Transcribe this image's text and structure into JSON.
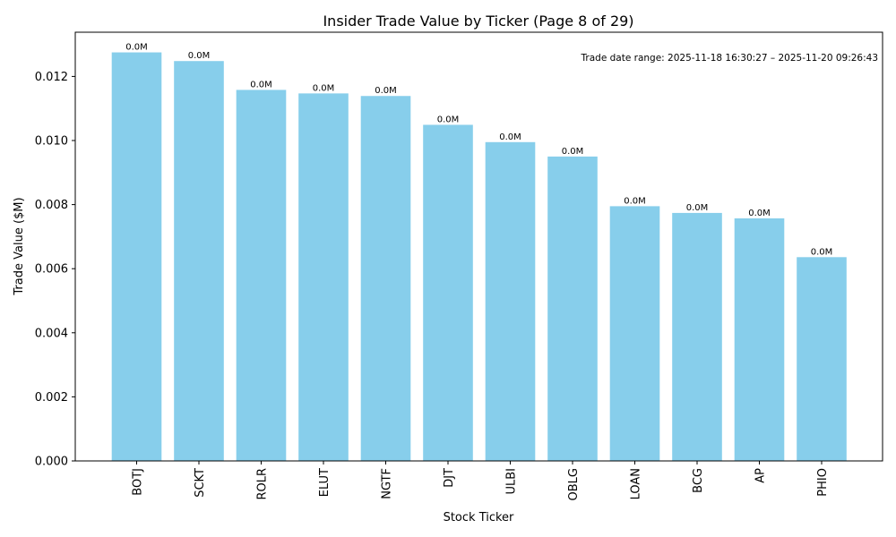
{
  "chart_data": {
    "type": "bar",
    "title": "Insider Trade Value by Ticker (Page 8 of 29)",
    "xlabel": "Stock Ticker",
    "ylabel": "Trade Value ($M)",
    "categories": [
      "BOTJ",
      "SCKT",
      "ROLR",
      "ELUT",
      "NGTF",
      "DJT",
      "ULBI",
      "OBLG",
      "LOAN",
      "BCG",
      "AP",
      "PHIO"
    ],
    "values": [
      0.01275,
      0.01248,
      0.01158,
      0.01147,
      0.01139,
      0.01049,
      0.00995,
      0.0095,
      0.00795,
      0.00774,
      0.00757,
      0.00636
    ],
    "data_labels": [
      "0.0M",
      "0.0M",
      "0.0M",
      "0.0M",
      "0.0M",
      "0.0M",
      "0.0M",
      "0.0M",
      "0.0M",
      "0.0M",
      "0.0M",
      "0.0M"
    ],
    "ylim": [
      0,
      0.01338
    ],
    "yticks": [
      0.0,
      0.002,
      0.004,
      0.006,
      0.008,
      0.01,
      0.012
    ],
    "ytick_labels": [
      "0.000",
      "0.002",
      "0.004",
      "0.006",
      "0.008",
      "0.010",
      "0.012"
    ],
    "grid": false,
    "bar_color": "#87ceeb",
    "annotation": "Trade date range: 2025-11-18 16:30:27 – 2025-11-20 09:26:43"
  }
}
